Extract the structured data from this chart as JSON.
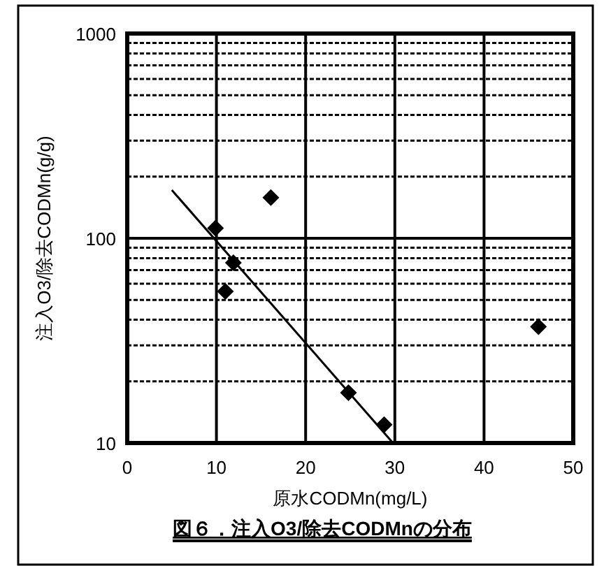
{
  "chart_data": {
    "type": "scatter",
    "title": "図６．注入O3/除去CODMnの分布",
    "xlabel": "原水CODMn(mg/L)",
    "ylabel": "注入O3/除去CODMn(g/g)",
    "log": "y",
    "grid": true,
    "marker": "diamond",
    "xlim": [
      0,
      50
    ],
    "xticks": [
      0,
      10,
      20,
      30,
      40,
      50
    ],
    "ylim": [
      10,
      1000
    ],
    "yticks": [
      10,
      {
        "value": 20,
        "label": null
      },
      {
        "value": 30,
        "label": null
      },
      {
        "value": 40,
        "label": null
      },
      {
        "value": 50,
        "label": null
      },
      {
        "value": 60,
        "label": null
      },
      {
        "value": 70,
        "label": null
      },
      {
        "value": 80,
        "label": null
      },
      {
        "value": 90,
        "label": null
      },
      100,
      {
        "value": 200,
        "label": null
      },
      {
        "value": 300,
        "label": null
      },
      {
        "value": 400,
        "label": null
      },
      {
        "value": 500,
        "label": null
      },
      {
        "value": 600,
        "label": null
      },
      {
        "value": 700,
        "label": null
      },
      {
        "value": 800,
        "label": null
      },
      {
        "value": 900,
        "label": null
      },
      1000
    ],
    "series": [
      {
        "color": "#000000",
        "x": [
          9.9,
          11.9,
          11.0,
          16.1,
          24.8,
          28.8,
          46.1
        ],
        "values": [
          112,
          76,
          55,
          158,
          17.6,
          12.3,
          37
        ]
      },
      {
        "type": "line",
        "color": "#000000",
        "marker": "none",
        "x": [
          5.0,
          29.8
        ],
        "values": [
          172,
          10
        ]
      }
    ]
  }
}
